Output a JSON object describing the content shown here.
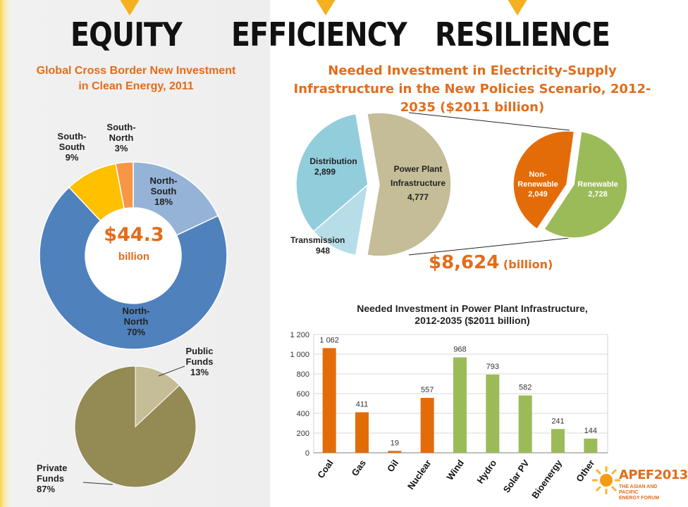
{
  "header": {
    "words": [
      "EQUITY",
      "EFFICIENCY",
      "RESILIENCE"
    ]
  },
  "chart_data": [
    {
      "type": "donut",
      "title": "Global Cross Border New Investment in Clean Energy, 2011",
      "center_value": "$44.3",
      "center_unit": "billion",
      "slices": [
        {
          "name": "North-South",
          "value": 18,
          "label_lines": [
            "North-",
            "South",
            "18%"
          ],
          "color": "#95b3d7"
        },
        {
          "name": "North-North",
          "value": 70,
          "label_lines": [
            "North-",
            "North",
            "70%"
          ],
          "color": "#4f81bd"
        },
        {
          "name": "South-South",
          "value": 9,
          "label_lines": [
            "South-",
            "South",
            "9%"
          ],
          "color": "#ffc000"
        },
        {
          "name": "South-North",
          "value": 3,
          "label_lines": [
            "South-",
            "North",
            "3%"
          ],
          "color": "#f79646"
        }
      ]
    },
    {
      "type": "pie",
      "slices": [
        {
          "name": "Public Funds",
          "value": 13,
          "label_lines": [
            "Public",
            "Funds",
            "13%"
          ],
          "color": "#c4bd97"
        },
        {
          "name": "Private Funds",
          "value": 87,
          "label_lines": [
            "Private",
            "Funds",
            "87%"
          ],
          "color": "#948a54"
        }
      ]
    },
    {
      "type": "pie",
      "title": "Needed Investment in Electricity-Supply Infrastructure in the New Policies Scenario, 2012-2035 ($2011 billion)",
      "total_value": "$8,624",
      "total_unit": "(billion)",
      "slices": [
        {
          "name": "Distribution",
          "value": 2899,
          "label_lines": [
            "Distribution",
            "2,899"
          ],
          "color": "#92cddc"
        },
        {
          "name": "Transmission",
          "value": 948,
          "label_lines": [
            "Transmission",
            "948"
          ],
          "color": "#b7dde8"
        },
        {
          "name": "Power Plant Infrastructure",
          "value": 4777,
          "label_lines": [
            "Power Plant",
            "Infrastructure",
            "4,777"
          ],
          "color": "#c4bd97"
        }
      ],
      "breakdown": {
        "of": "Power Plant Infrastructure",
        "slices": [
          {
            "name": "Non-Renewable",
            "value": 2049,
            "label_lines": [
              "Non-",
              "Renewable",
              "2,049"
            ],
            "color": "#e36c09"
          },
          {
            "name": "Renewable",
            "value": 2728,
            "label_lines": [
              "Renewable",
              "2,728"
            ],
            "color": "#9bbb59"
          }
        ]
      }
    },
    {
      "type": "bar",
      "title_lines": [
        "Needed Investment in Power Plant Infrastructure,",
        "2012-2035 ($2011 billion)"
      ],
      "categories": [
        "Coal",
        "Gas",
        "Oil",
        "Nuclear",
        "Wind",
        "Hydro",
        "Solar PV",
        "Bioenergy",
        "Other"
      ],
      "values": [
        1062,
        411,
        19,
        557,
        968,
        793,
        582,
        241,
        144
      ],
      "value_labels": [
        "1 062",
        "411",
        "19",
        "557",
        "968",
        "793",
        "582",
        "241",
        "144"
      ],
      "colors": [
        "#e36c09",
        "#e36c09",
        "#e36c09",
        "#e36c09",
        "#9bbb59",
        "#9bbb59",
        "#9bbb59",
        "#9bbb59",
        "#9bbb59"
      ],
      "yticks": [
        0,
        200,
        400,
        600,
        800,
        1000,
        1200
      ],
      "ytick_labels": [
        "0",
        "200",
        "400",
        "600",
        "800",
        "1 000",
        "1 200"
      ],
      "ylim": [
        0,
        1200
      ],
      "grid": true
    }
  ],
  "logo": {
    "text": "APEF2013",
    "subtitle_lines": [
      "THE ASIAN AND PACIFIC",
      "ENERGY FORUM"
    ]
  }
}
